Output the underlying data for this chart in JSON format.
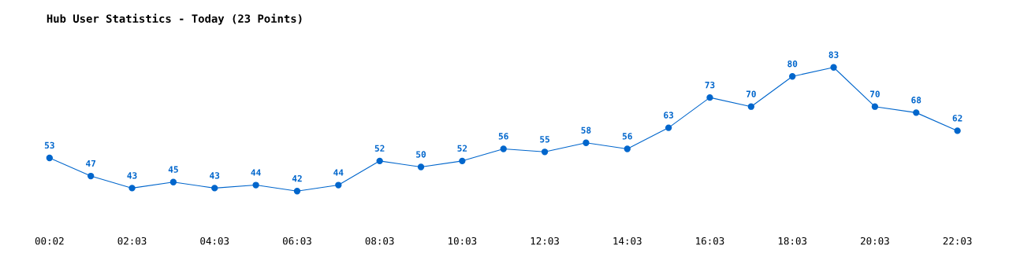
{
  "chart_data": {
    "type": "line",
    "title": "Hub User Statistics - Today (23 Points)",
    "categories": [
      "00:02",
      null,
      "02:03",
      null,
      "04:03",
      null,
      "06:03",
      null,
      "08:03",
      null,
      "10:03",
      null,
      "12:03",
      null,
      "14:03",
      null,
      "16:03",
      null,
      "18:03",
      null,
      "20:03",
      null,
      "22:03"
    ],
    "series": [
      {
        "color": "#0066cc",
        "values": [
          53,
          47,
          43,
          45,
          43,
          44,
          42,
          44,
          52,
          50,
          52,
          56,
          55,
          58,
          56,
          63,
          73,
          70,
          80,
          83,
          70,
          68,
          62
        ]
      }
    ],
    "data_labels": true,
    "marker": "circle",
    "grid": false,
    "legend": false,
    "tick_labels": "x"
  }
}
